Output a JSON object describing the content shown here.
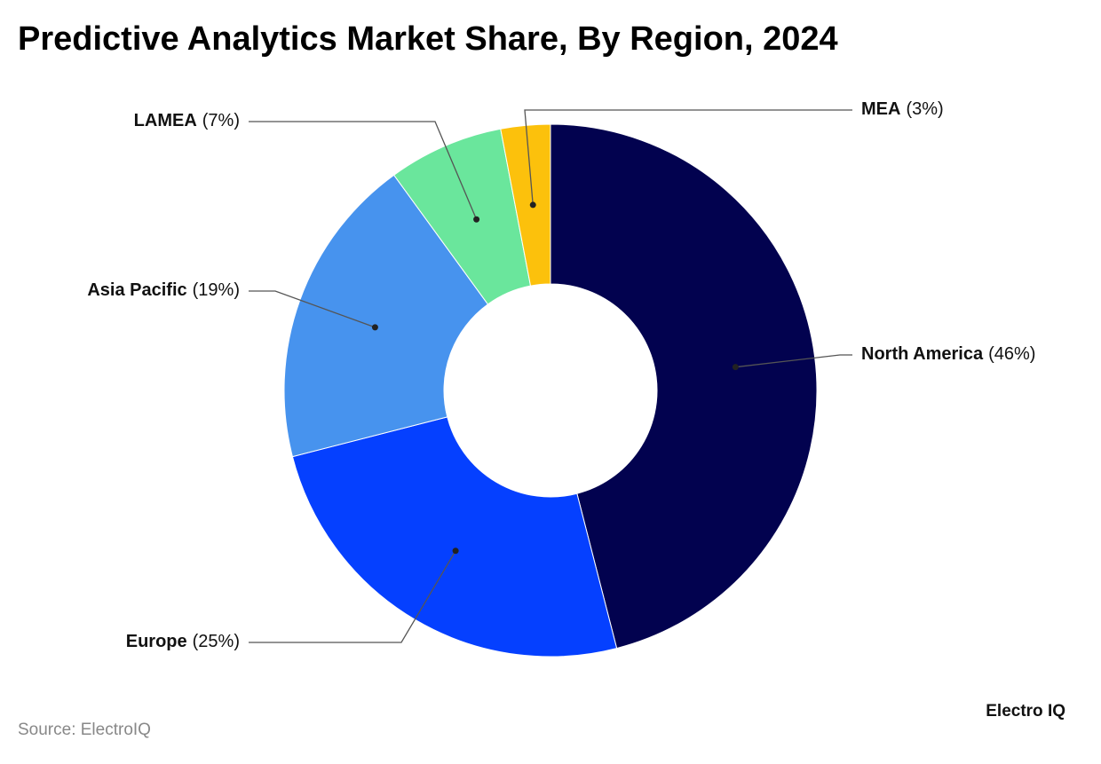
{
  "chart_data": {
    "type": "donut",
    "title": "Predictive Analytics Market Share, By Region, 2024",
    "categories": [
      "North America",
      "Europe",
      "Asia Pacific",
      "LAMEA",
      "MEA"
    ],
    "values": [
      46,
      25,
      19,
      7,
      3
    ],
    "value_labels": [
      "(46%)",
      "(25%)",
      "(19%)",
      "(7%)",
      "(3%)"
    ],
    "colors": [
      "#02024f",
      "#0540ff",
      "#4793ee",
      "#6ae69c",
      "#fcc10c"
    ],
    "source": "Source: ElectroIQ",
    "brand": "Electro IQ"
  }
}
